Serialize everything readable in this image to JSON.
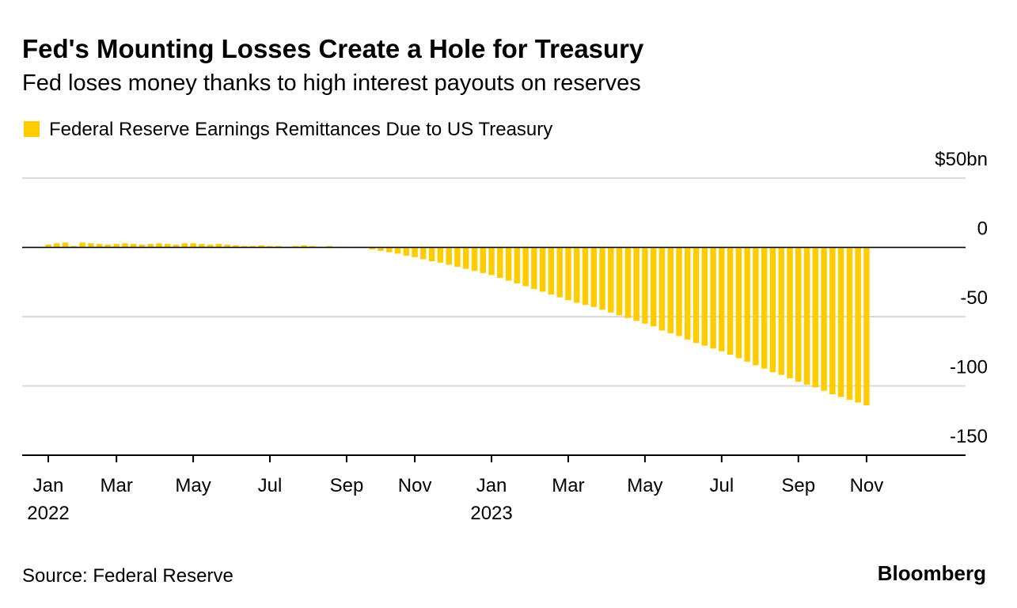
{
  "chart_data": {
    "type": "bar",
    "title": "Fed's Mounting Losses Create a Hole for Treasury",
    "subtitle": "Fed loses money thanks to high interest payouts on reserves",
    "series": [
      {
        "name": "Federal Reserve Earnings Remittances Due to US Treasury",
        "color": "#ffcc00",
        "values": [
          2,
          3,
          3.5,
          1,
          3.5,
          3,
          2.5,
          2,
          2.5,
          3,
          2.5,
          2,
          2.5,
          3,
          2.5,
          2,
          3,
          3,
          2.5,
          2,
          2.5,
          2,
          1.5,
          1,
          1,
          1.5,
          1,
          1,
          0.5,
          1,
          1.5,
          1,
          0.5,
          1,
          0.5,
          0.5,
          0.3,
          -0.5,
          -1.5,
          -2.5,
          -3.5,
          -4.5,
          -6,
          -7,
          -8.5,
          -10,
          -11,
          -12.5,
          -14,
          -15.5,
          -17,
          -18.5,
          -20,
          -22,
          -24,
          -26,
          -28,
          -30,
          -32,
          -34,
          -36,
          -38,
          -40,
          -41.5,
          -43,
          -45,
          -47,
          -49,
          -51,
          -53,
          -55,
          -57,
          -60,
          -62,
          -64,
          -66.5,
          -69,
          -71,
          -73,
          -75,
          -77.5,
          -80,
          -82.5,
          -85,
          -87.5,
          -90,
          -92,
          -94.5,
          -97,
          -99,
          -101,
          -103.5,
          -106,
          -108,
          -110,
          -112,
          -114
        ]
      }
    ],
    "categories": [
      "Jan",
      null,
      null,
      null,
      null,
      null,
      null,
      null,
      "Mar",
      null,
      null,
      null,
      null,
      null,
      null,
      null,
      null,
      "May",
      null,
      null,
      null,
      null,
      null,
      null,
      null,
      null,
      "Jul",
      null,
      null,
      null,
      null,
      null,
      null,
      null,
      null,
      "Sep",
      null,
      null,
      null,
      null,
      null,
      null,
      null,
      "Nov",
      null,
      null,
      null,
      null,
      null,
      null,
      null,
      null,
      "Jan",
      null,
      null,
      null,
      null,
      null,
      null,
      null,
      null,
      "Mar",
      null,
      null,
      null,
      null,
      null,
      null,
      null,
      null,
      "May",
      null,
      null,
      null,
      null,
      null,
      null,
      null,
      null,
      "Jul",
      null,
      null,
      null,
      null,
      null,
      null,
      null,
      null,
      "Sep",
      null,
      null,
      null,
      null,
      null,
      null,
      null,
      "Nov"
    ],
    "category_years": [
      "2022",
      null,
      null,
      null,
      null,
      null,
      null,
      null,
      null,
      null,
      null,
      null,
      null,
      null,
      null,
      null,
      null,
      null,
      null,
      null,
      null,
      null,
      null,
      null,
      null,
      null,
      null,
      null,
      null,
      null,
      null,
      null,
      null,
      null,
      null,
      null,
      null,
      null,
      null,
      null,
      null,
      null,
      null,
      null,
      null,
      null,
      null,
      null,
      null,
      null,
      null,
      null,
      "2023",
      null,
      null,
      null,
      null,
      null,
      null,
      null,
      null,
      null,
      null,
      null,
      null,
      null,
      null,
      null,
      null,
      null,
      null,
      null,
      null,
      null,
      null,
      null,
      null,
      null,
      null,
      null,
      null,
      null,
      null,
      null,
      null,
      null,
      null,
      null,
      null,
      null,
      null,
      null,
      null,
      null,
      null,
      null,
      null
    ],
    "ylim": [
      -150,
      50
    ],
    "yticks": [
      {
        "value": 50,
        "label": "$50bn"
      },
      0,
      -50,
      -100,
      -150
    ],
    "grid": true,
    "source": "Source: Federal Reserve",
    "brand": "Bloomberg"
  }
}
